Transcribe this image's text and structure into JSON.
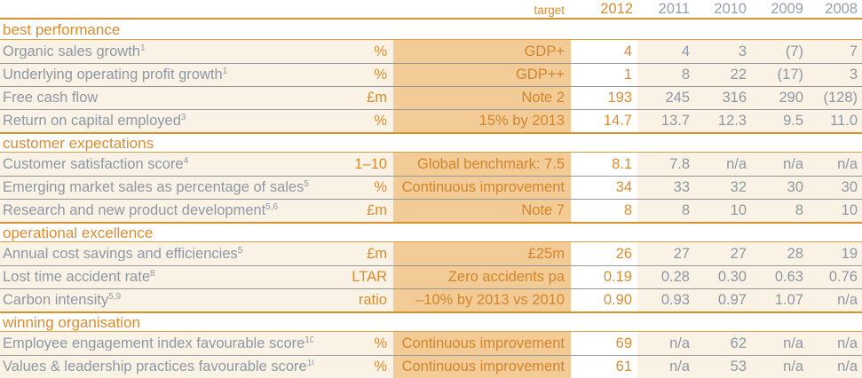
{
  "palette": {
    "orange_text": "#dd8b2f",
    "orange_line": "#d6912f",
    "tan_target_bg": "#f3cb97",
    "cream_row_bg": "#faf3e5",
    "gray_text": "#8e97a4",
    "gray_line": "#979797",
    "current_year_bg": "#ffffff"
  },
  "header": {
    "target_label": "target",
    "years": [
      "2012",
      "2011",
      "2010",
      "2009",
      "2008"
    ]
  },
  "sections": [
    {
      "title": "best performance",
      "rows": [
        {
          "label": "Organic sales growth",
          "sup": "1",
          "unit": "%",
          "target": "GDP+",
          "values": [
            "4",
            "4",
            "3",
            "(7)",
            "7"
          ]
        },
        {
          "label": "Underlying operating profit growth",
          "sup": "1",
          "unit": "%",
          "target": "GDP++",
          "values": [
            "1",
            "8",
            "22",
            "(17)",
            "3"
          ]
        },
        {
          "label": "Free cash flow",
          "sup": "",
          "unit": "£m",
          "target": "Note 2",
          "values": [
            "193",
            "245",
            "316",
            "290",
            "(128)"
          ]
        },
        {
          "label": "Return on capital employed",
          "sup": "3",
          "unit": "%",
          "target": "15% by 2013",
          "values": [
            "14.7",
            "13.7",
            "12.3",
            "9.5",
            "11.0"
          ]
        }
      ]
    },
    {
      "title": "customer expectations",
      "rows": [
        {
          "label": "Customer satisfaction score",
          "sup": "4",
          "unit": "1–10",
          "target": "Global benchmark: 7.5",
          "values": [
            "8.1",
            "7.8",
            "n/a",
            "n/a",
            "n/a"
          ]
        },
        {
          "label": "Emerging market sales as percentage of sales",
          "sup": "5",
          "unit": "%",
          "target": "Continuous improvement",
          "values": [
            "34",
            "33",
            "32",
            "30",
            "30"
          ]
        },
        {
          "label": "Research and new product development",
          "sup": "5,6",
          "unit": "£m",
          "target": "Note 7",
          "values": [
            "8",
            "8",
            "10",
            "8",
            "10"
          ]
        }
      ]
    },
    {
      "title": "operational excellence",
      "rows": [
        {
          "label": "Annual cost savings and efficiencies",
          "sup": "5",
          "unit": "£m",
          "target": "£25m",
          "values": [
            "26",
            "27",
            "27",
            "28",
            "19"
          ]
        },
        {
          "label": "Lost time accident rate",
          "sup": "8",
          "unit": "LTAR",
          "target": "Zero accidents pa",
          "values": [
            "0.19",
            "0.28",
            "0.30",
            "0.63",
            "0.76"
          ]
        },
        {
          "label": "Carbon intensity",
          "sup": "5,9",
          "unit": "ratio",
          "target": "–10% by 2013 vs 2010",
          "values": [
            "0.90",
            "0.93",
            "0.97",
            "1.07",
            "n/a"
          ]
        }
      ]
    },
    {
      "title": "winning organisation",
      "rows": [
        {
          "label": "Employee engagement index favourable score",
          "sup": "10",
          "unit": "%",
          "target": "Continuous improvement",
          "values": [
            "69",
            "n/a",
            "62",
            "n/a",
            "n/a"
          ]
        },
        {
          "label": "Values & leadership practices favourable score",
          "sup": "10",
          "unit": "%",
          "target": "Continuous improvement",
          "values": [
            "61",
            "n/a",
            "53",
            "n/a",
            "n/a"
          ]
        }
      ]
    }
  ]
}
